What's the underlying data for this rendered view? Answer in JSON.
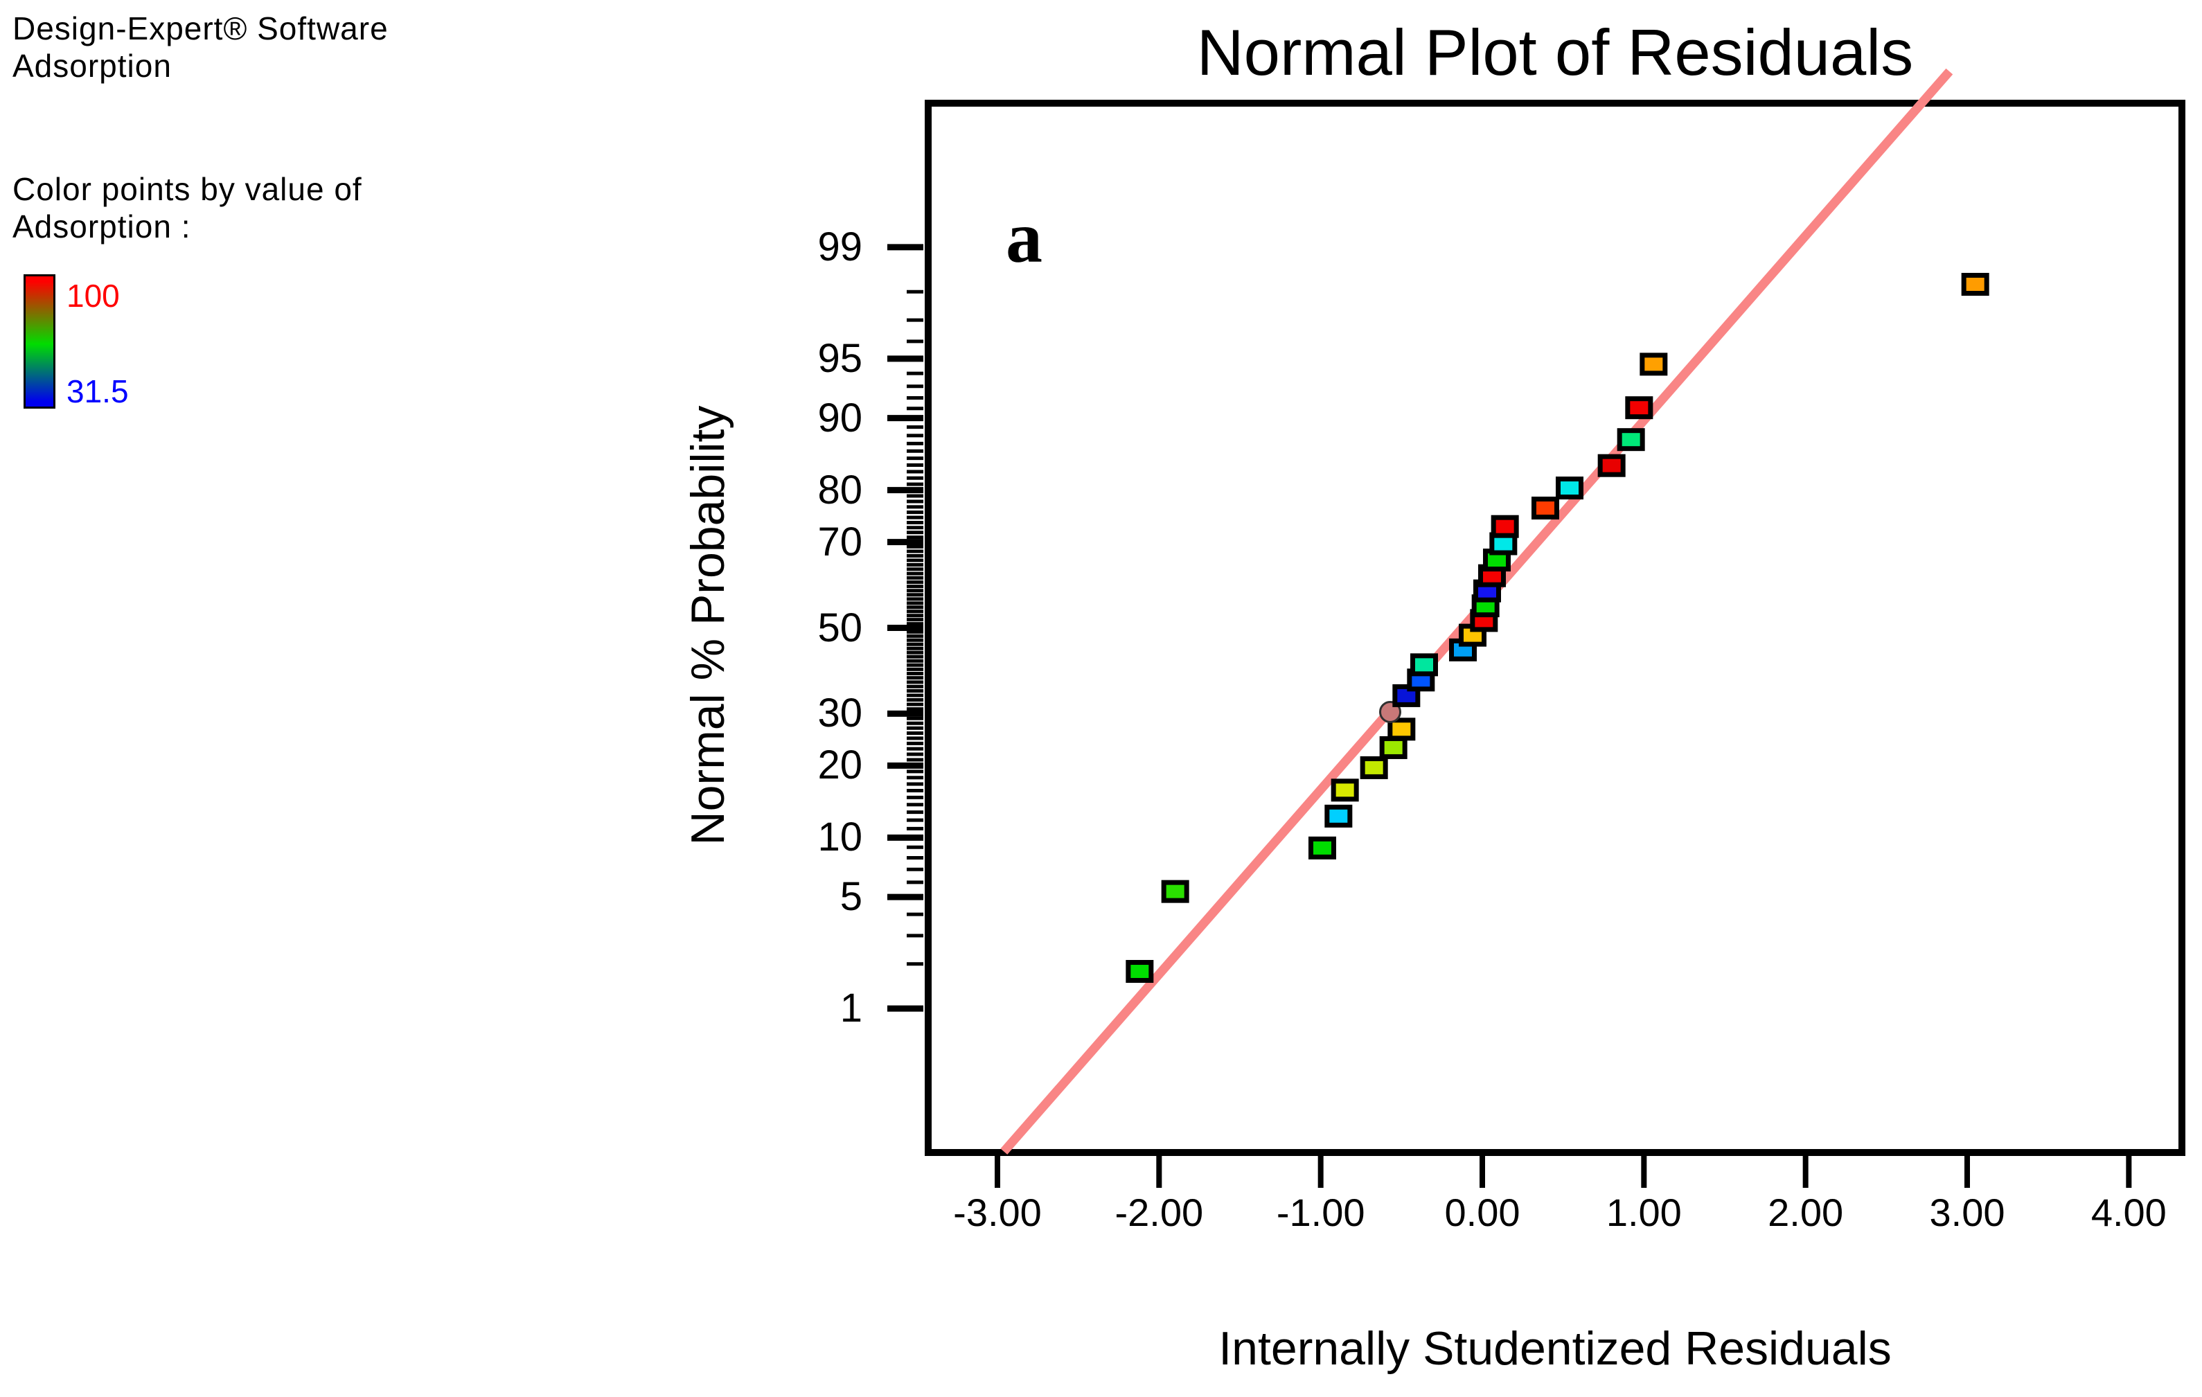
{
  "legend": {
    "software_line": "Design-Expert® Software",
    "response_line": "Adsorption",
    "caption_line1": "Color points by value of",
    "caption_line2": "Adsorption :",
    "scale_max_label": "100",
    "scale_min_label": "31.5",
    "scale_max_label_color": "#ff0000",
    "scale_min_label_color": "#0000ff",
    "gradient_top_color": "#ff0000",
    "gradient_mid_color": "#00dd00",
    "gradient_bottom_color": "#0000ee"
  },
  "chart_data": {
    "type": "scatter",
    "title": "Normal Plot of Residuals",
    "xlabel": "Internally Studentized Residuals",
    "ylabel": "Normal % Probability",
    "panel_label": "a",
    "axes": {
      "x_scale": "linear",
      "y_scale": "normal-probability (probit)",
      "xlim": [
        -3.45,
        4.35
      ],
      "zmax": 3.227,
      "y_minor_tick_from_percent": 1,
      "y_minor_tick_to_percent": 99,
      "grid": false
    },
    "x_ticks": [
      {
        "v": -3,
        "label": "-3.00"
      },
      {
        "v": -2,
        "label": "-2.00"
      },
      {
        "v": -1,
        "label": "-1.00"
      },
      {
        "v": 0,
        "label": "0.00"
      },
      {
        "v": 1,
        "label": "1.00"
      },
      {
        "v": 2,
        "label": "2.00"
      },
      {
        "v": 3,
        "label": "3.00"
      },
      {
        "v": 4,
        "label": "4.00"
      }
    ],
    "y_ticks": [
      {
        "p": 1,
        "label": "1"
      },
      {
        "p": 5,
        "label": "5"
      },
      {
        "p": 10,
        "label": "10"
      },
      {
        "p": 20,
        "label": "20"
      },
      {
        "p": 30,
        "label": "30"
      },
      {
        "p": 50,
        "label": "50"
      },
      {
        "p": 70,
        "label": "70"
      },
      {
        "p": 80,
        "label": "80"
      },
      {
        "p": 90,
        "label": "90"
      },
      {
        "p": 95,
        "label": "95"
      },
      {
        "p": 99,
        "label": "99"
      }
    ],
    "fit_line": {
      "v1": -2.96,
      "z1": -3.2,
      "v2": 2.89,
      "z2": 3.4,
      "color": "#f98585",
      "width": 13
    },
    "points": [
      {
        "residual": -2.12,
        "prob": 1.79,
        "color": "#00df00",
        "shape": "square"
      },
      {
        "residual": -1.9,
        "prob": 5.36,
        "color": "#2adf00",
        "shape": "square"
      },
      {
        "residual": -0.99,
        "prob": 8.93,
        "color": "#00dc00",
        "shape": "square"
      },
      {
        "residual": -0.89,
        "prob": 12.5,
        "color": "#00cfff",
        "shape": "square"
      },
      {
        "residual": -0.85,
        "prob": 16.07,
        "color": "#d8e800",
        "shape": "square"
      },
      {
        "residual": -0.67,
        "prob": 19.64,
        "color": "#c3e800",
        "shape": "square"
      },
      {
        "residual": -0.55,
        "prob": 23.21,
        "color": "#9ce800",
        "shape": "square"
      },
      {
        "residual": -0.5,
        "prob": 26.79,
        "color": "#ffc800",
        "shape": "square"
      },
      {
        "residual": -0.57,
        "prob": 30.36,
        "color": "#c87878",
        "shape": "circle"
      },
      {
        "residual": -0.47,
        "prob": 33.93,
        "color": "#0714d8",
        "shape": "square"
      },
      {
        "residual": -0.38,
        "prob": 37.5,
        "color": "#0055ff",
        "shape": "square"
      },
      {
        "residual": -0.36,
        "prob": 41.07,
        "color": "#00e69e",
        "shape": "square"
      },
      {
        "residual": -0.12,
        "prob": 44.64,
        "color": "#00a0f5",
        "shape": "square"
      },
      {
        "residual": -0.06,
        "prob": 48.21,
        "color": "#ffc400",
        "shape": "square"
      },
      {
        "residual": 0.01,
        "prob": 51.79,
        "color": "#f40000",
        "shape": "square"
      },
      {
        "residual": 0.02,
        "prob": 55.36,
        "color": "#00dc00",
        "shape": "square"
      },
      {
        "residual": 0.03,
        "prob": 58.93,
        "color": "#1414f0",
        "shape": "square"
      },
      {
        "residual": 0.06,
        "prob": 62.5,
        "color": "#f40000",
        "shape": "square"
      },
      {
        "residual": 0.09,
        "prob": 66.07,
        "color": "#00dc00",
        "shape": "square"
      },
      {
        "residual": 0.13,
        "prob": 69.64,
        "color": "#00e8e8",
        "shape": "square"
      },
      {
        "residual": 0.14,
        "prob": 73.21,
        "color": "#f40000",
        "shape": "square"
      },
      {
        "residual": 0.39,
        "prob": 76.79,
        "color": "#ff3c00",
        "shape": "square"
      },
      {
        "residual": 0.54,
        "prob": 80.36,
        "color": "#00e8e8",
        "shape": "square"
      },
      {
        "residual": 0.8,
        "prob": 83.93,
        "color": "#e80000",
        "shape": "square"
      },
      {
        "residual": 0.92,
        "prob": 87.5,
        "color": "#00e878",
        "shape": "square"
      },
      {
        "residual": 0.97,
        "prob": 91.07,
        "color": "#f40000",
        "shape": "square"
      },
      {
        "residual": 1.06,
        "prob": 94.64,
        "color": "#ffa000",
        "shape": "square"
      },
      {
        "residual": 3.05,
        "prob": 98.21,
        "color": "#ff9c00",
        "shape": "square"
      }
    ]
  }
}
